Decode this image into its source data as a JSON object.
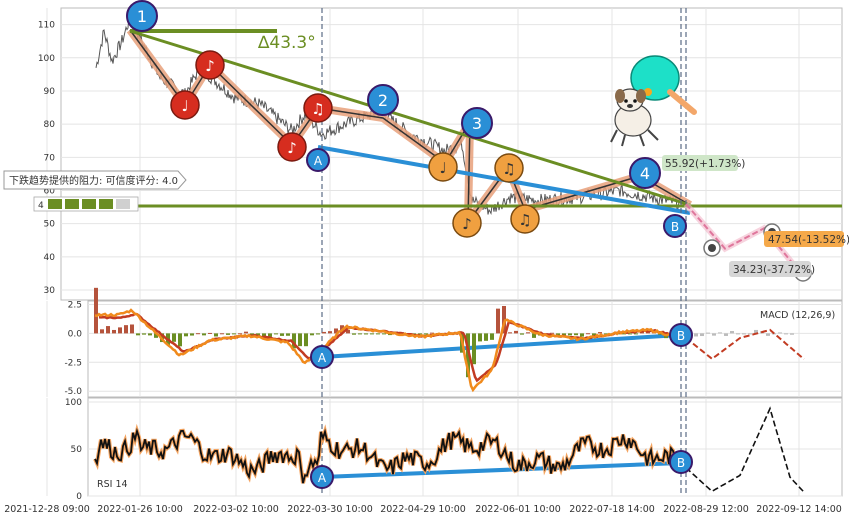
{
  "chart_data": {
    "type": "line",
    "x_ticks": [
      "2021-12-28 09:00",
      "2022-01-26 10:00",
      "2022-03-02 10:00",
      "2022-03-30 10:00",
      "2022-04-29 10:00",
      "2022-06-01 10:00",
      "2022-07-18 14:00",
      "2022-08-29 12:00",
      "2022-09-12 14:00"
    ],
    "price_panel": {
      "yticks": [
        30,
        40,
        50,
        60,
        70,
        80,
        90,
        100,
        110
      ],
      "ylim": [
        27,
        115
      ],
      "support_level": 55.9,
      "angle_label": "∆43.3°",
      "resistance_note": "下跌趋势提供的阻力: 可信度评分: 4.0",
      "score_badge": "4",
      "wave_points": [
        "1",
        "2",
        "3",
        "4"
      ],
      "divergence_points": [
        "A",
        "B"
      ],
      "current_label": "55.92(+1.73%)",
      "target_labels": [
        "47.54(-13.52%)",
        "34.23(-37.72%)"
      ],
      "projection": [
        {
          "t": 0.0,
          "v": 55.9
        },
        {
          "t": 0.5,
          "v": 42.5
        },
        {
          "t": 1.0,
          "v": 48.6
        },
        {
          "t": 1.5,
          "v": 34.2
        }
      ]
    },
    "macd_panel": {
      "title": "MACD (12,26,9)",
      "yticks": [
        2.5,
        0.0,
        -2.5,
        -5.0
      ],
      "ylim": [
        -5.5,
        2.8
      ]
    },
    "rsi_panel": {
      "title": "RSI 14",
      "yticks": [
        100,
        50,
        0
      ],
      "ylim": [
        0,
        100
      ]
    }
  },
  "colors": {
    "price": "#555555",
    "trend": "#6b8e23",
    "divergence": "#2a8fd6",
    "wave": "#e8a07a",
    "macd_fast": "#e8731a",
    "macd_slow": "#c23b22",
    "rsi": "#111111"
  }
}
